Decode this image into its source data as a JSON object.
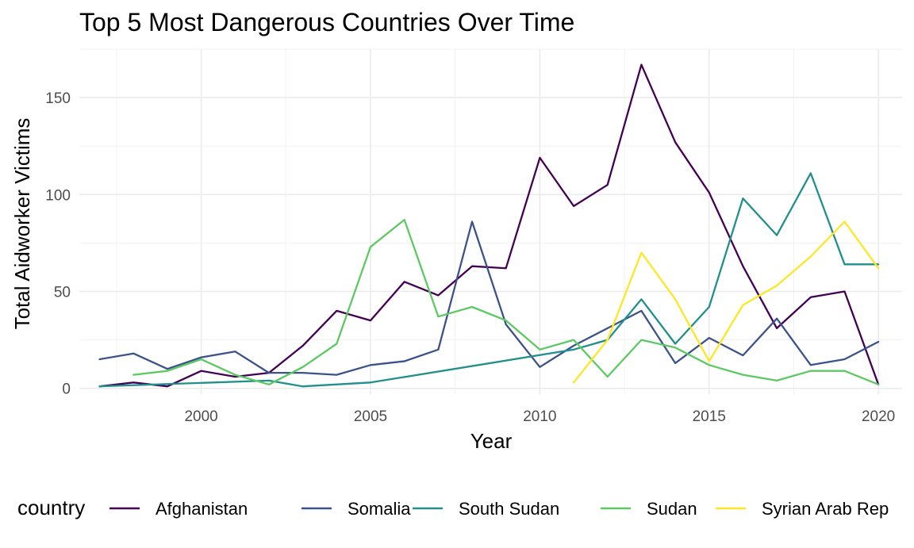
{
  "chart_data": {
    "type": "line",
    "title": "Top 5 Most Dangerous Countries Over Time",
    "xlabel": "Year",
    "ylabel": "Total Aidworker Victims",
    "xlim": [
      1996.4,
      2020.7
    ],
    "ylim": [
      -3,
      175
    ],
    "x_ticks": [
      2000,
      2005,
      2010,
      2015,
      2020
    ],
    "y_ticks": [
      0,
      50,
      100,
      150
    ],
    "grid": true,
    "legend_title": "country",
    "legend_position": "bottom",
    "series": [
      {
        "name": "Afghanistan",
        "color": "#440154",
        "points": [
          [
            1997,
            1
          ],
          [
            1998,
            3
          ],
          [
            1999,
            1
          ],
          [
            2000,
            9
          ],
          [
            2001,
            6
          ],
          [
            2002,
            8
          ],
          [
            2003,
            22
          ],
          [
            2004,
            40
          ],
          [
            2005,
            35
          ],
          [
            2006,
            55
          ],
          [
            2007,
            48
          ],
          [
            2008,
            63
          ],
          [
            2009,
            62
          ],
          [
            2010,
            119
          ],
          [
            2011,
            94
          ],
          [
            2012,
            105
          ],
          [
            2013,
            167
          ],
          [
            2014,
            127
          ],
          [
            2015,
            101
          ],
          [
            2016,
            63
          ],
          [
            2017,
            31
          ],
          [
            2018,
            47
          ],
          [
            2019,
            50
          ],
          [
            2020,
            2
          ]
        ]
      },
      {
        "name": "Somalia",
        "color": "#3b528b",
        "points": [
          [
            1997,
            15
          ],
          [
            1998,
            18
          ],
          [
            1999,
            10
          ],
          [
            2000,
            16
          ],
          [
            2001,
            19
          ],
          [
            2002,
            8
          ],
          [
            2003,
            8
          ],
          [
            2004,
            7
          ],
          [
            2005,
            12
          ],
          [
            2006,
            14
          ],
          [
            2007,
            20
          ],
          [
            2008,
            86
          ],
          [
            2009,
            33
          ],
          [
            2010,
            11
          ],
          [
            2011,
            22
          ],
          [
            2012,
            31
          ],
          [
            2013,
            40
          ],
          [
            2014,
            13
          ],
          [
            2015,
            26
          ],
          [
            2016,
            17
          ],
          [
            2017,
            36
          ],
          [
            2018,
            12
          ],
          [
            2019,
            15
          ],
          [
            2020,
            24
          ]
        ]
      },
      {
        "name": "South Sudan",
        "color": "#21908c",
        "points": [
          [
            1997,
            1
          ],
          [
            2002,
            4
          ],
          [
            2003,
            1
          ],
          [
            2005,
            3
          ],
          [
            2011,
            20
          ],
          [
            2012,
            25
          ],
          [
            2013,
            46
          ],
          [
            2014,
            23
          ],
          [
            2015,
            42
          ],
          [
            2016,
            98
          ],
          [
            2017,
            79
          ],
          [
            2018,
            111
          ],
          [
            2019,
            64
          ],
          [
            2020,
            64
          ]
        ]
      },
      {
        "name": "Sudan",
        "color": "#5dc963",
        "points": [
          [
            1998,
            7
          ],
          [
            1999,
            9
          ],
          [
            2000,
            15
          ],
          [
            2001,
            7
          ],
          [
            2002,
            2
          ],
          [
            2003,
            11
          ],
          [
            2004,
            23
          ],
          [
            2005,
            73
          ],
          [
            2006,
            87
          ],
          [
            2007,
            37
          ],
          [
            2008,
            42
          ],
          [
            2009,
            35
          ],
          [
            2010,
            20
          ],
          [
            2011,
            25
          ],
          [
            2012,
            6
          ],
          [
            2013,
            25
          ],
          [
            2014,
            21
          ],
          [
            2015,
            12
          ],
          [
            2016,
            7
          ],
          [
            2017,
            4
          ],
          [
            2018,
            9
          ],
          [
            2019,
            9
          ],
          [
            2020,
            2
          ]
        ]
      },
      {
        "name": "Syrian Arab Rep",
        "color": "#fde725",
        "points": [
          [
            2011,
            3
          ],
          [
            2012,
            25
          ],
          [
            2013,
            70
          ],
          [
            2014,
            46
          ],
          [
            2015,
            14
          ],
          [
            2016,
            43
          ],
          [
            2017,
            53
          ],
          [
            2018,
            68
          ],
          [
            2019,
            86
          ],
          [
            2020,
            62
          ]
        ]
      }
    ]
  }
}
